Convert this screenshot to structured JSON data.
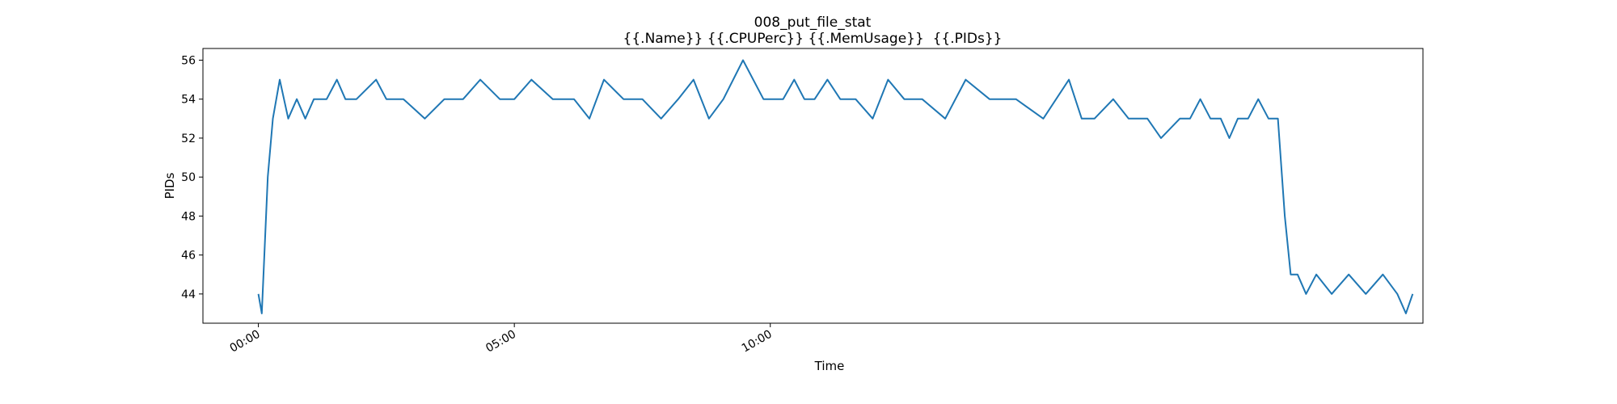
{
  "chart_data": {
    "type": "line",
    "title": "008_put_file_stat",
    "subtitle": "{{.Name}} {{.CPUPerc}} {{.MemUsage}}  {{.PIDs}}",
    "xlabel": "Time",
    "ylabel": "PIDs",
    "x_unit": "minutes",
    "xlim": [
      -65,
      1365
    ],
    "ylim": [
      42.5,
      56.6
    ],
    "xticks": [
      {
        "value": 0,
        "label": "00:00"
      },
      {
        "value": 300,
        "label": "05:00"
      },
      {
        "value": 600,
        "label": "10:00"
      }
    ],
    "yticks": [
      {
        "value": 44,
        "label": "44"
      },
      {
        "value": 46,
        "label": "46"
      },
      {
        "value": 48,
        "label": "48"
      },
      {
        "value": 50,
        "label": "50"
      },
      {
        "value": 52,
        "label": "52"
      },
      {
        "value": 54,
        "label": "54"
      },
      {
        "value": 56,
        "label": "56"
      }
    ],
    "grid": false,
    "legend": "none",
    "series": [
      {
        "color": "#1f77b4",
        "x": [
          0,
          4,
          11,
          17,
          25,
          35,
          45,
          55,
          65,
          80,
          92,
          102,
          115,
          138,
          150,
          170,
          195,
          218,
          240,
          260,
          283,
          300,
          320,
          345,
          370,
          388,
          405,
          428,
          450,
          472,
          492,
          510,
          528,
          545,
          568,
          592,
          615,
          628,
          640,
          652,
          667,
          682,
          700,
          720,
          738,
          757,
          778,
          805,
          829,
          857,
          888,
          920,
          950,
          965,
          980,
          1002,
          1020,
          1042,
          1058,
          1080,
          1092,
          1104,
          1116,
          1128,
          1138,
          1148,
          1160,
          1172,
          1184,
          1195,
          1203,
          1210,
          1218,
          1228,
          1240,
          1258,
          1278,
          1298,
          1318,
          1335,
          1345,
          1353
        ],
        "y": [
          44,
          43,
          50,
          53,
          55,
          53,
          54,
          53,
          54,
          54,
          55,
          54,
          54,
          55,
          54,
          54,
          53,
          54,
          54,
          55,
          54,
          54,
          55,
          54,
          54,
          53,
          55,
          54,
          54,
          53,
          54,
          55,
          53,
          54,
          56,
          54,
          54,
          55,
          54,
          54,
          55,
          54,
          54,
          53,
          55,
          54,
          54,
          53,
          55,
          54,
          54,
          53,
          55,
          53,
          53,
          54,
          53,
          53,
          52,
          53,
          53,
          54,
          53,
          53,
          52,
          53,
          53,
          54,
          53,
          53,
          48,
          45,
          45,
          44,
          45,
          44,
          45,
          44,
          45,
          44,
          43,
          44
        ]
      }
    ]
  }
}
